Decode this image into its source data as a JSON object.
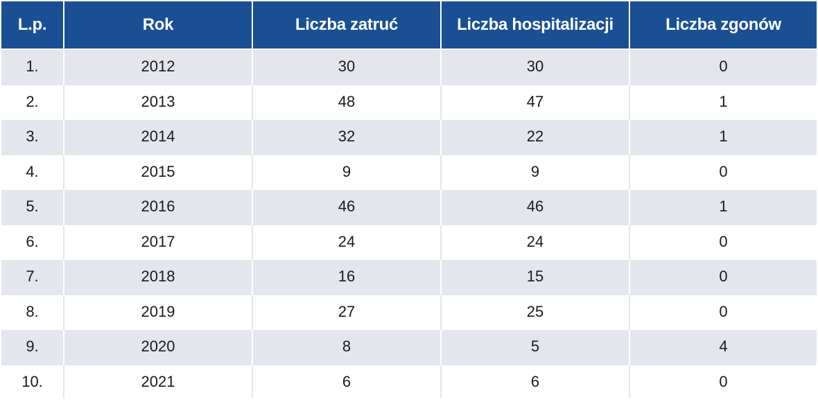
{
  "chart_data": {
    "type": "table",
    "columns": [
      "L.p.",
      "Rok",
      "Liczba zatruć",
      "Liczba hospitalizacji",
      "Liczba zgonów"
    ],
    "rows": [
      [
        "1.",
        "2012",
        "30",
        "30",
        "0"
      ],
      [
        "2.",
        "2013",
        "48",
        "47",
        "1"
      ],
      [
        "3.",
        "2014",
        "32",
        "22",
        "1"
      ],
      [
        "4.",
        "2015",
        "9",
        "9",
        "0"
      ],
      [
        "5.",
        "2016",
        "46",
        "46",
        "1"
      ],
      [
        "6.",
        "2017",
        "24",
        "24",
        "0"
      ],
      [
        "7.",
        "2018",
        "16",
        "15",
        "0"
      ],
      [
        "8.",
        "2019",
        "27",
        "25",
        "0"
      ],
      [
        "9.",
        "2020",
        "8",
        "5",
        "4"
      ],
      [
        "10.",
        "2021",
        "6",
        "6",
        "0"
      ]
    ]
  },
  "colors": {
    "header_background": "#1b4f93",
    "header_text": "#ffffff",
    "striped_row": "#e3e6ec",
    "plain_row": "#ffffff"
  }
}
